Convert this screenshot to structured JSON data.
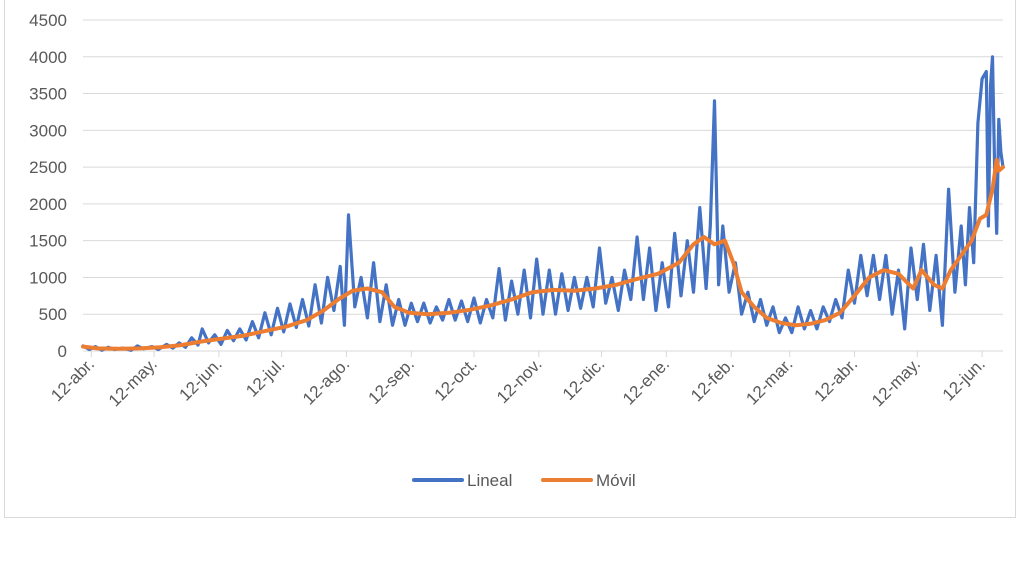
{
  "chart_data": {
    "type": "line",
    "title": "",
    "xlabel": "",
    "ylabel": "",
    "ylim": [
      0,
      4500
    ],
    "yticks": [
      0,
      500,
      1000,
      1500,
      2000,
      2500,
      3000,
      3500,
      4000,
      4500
    ],
    "xlim": [
      "2020-04-08",
      "2021-06-22"
    ],
    "xticks": [
      {
        "label": "12-abr.",
        "date": "2020-04-12"
      },
      {
        "label": "12-may.",
        "date": "2020-05-12"
      },
      {
        "label": "12-jun.",
        "date": "2020-06-12"
      },
      {
        "label": "12-jul.",
        "date": "2020-07-12"
      },
      {
        "label": "12-ago.",
        "date": "2020-08-12"
      },
      {
        "label": "12-sep.",
        "date": "2020-09-12"
      },
      {
        "label": "12-oct.",
        "date": "2020-10-12"
      },
      {
        "label": "12-nov.",
        "date": "2020-11-12"
      },
      {
        "label": "12-dic.",
        "date": "2020-12-12"
      },
      {
        "label": "12-ene.",
        "date": "2021-01-12"
      },
      {
        "label": "12-feb.",
        "date": "2021-02-12"
      },
      {
        "label": "12-mar.",
        "date": "2021-03-12"
      },
      {
        "label": "12-abr.",
        "date": "2021-04-12"
      },
      {
        "label": "12-may.",
        "date": "2021-05-12"
      },
      {
        "label": "12-jun.",
        "date": "2021-06-12"
      }
    ],
    "grid": true,
    "legend_position": "bottom",
    "series": [
      {
        "name": "Lineal",
        "color": "#4472c4",
        "points": [
          [
            "2020-04-08",
            70
          ],
          [
            "2020-04-11",
            20
          ],
          [
            "2020-04-14",
            60
          ],
          [
            "2020-04-17",
            10
          ],
          [
            "2020-04-20",
            50
          ],
          [
            "2020-04-23",
            20
          ],
          [
            "2020-04-27",
            40
          ],
          [
            "2020-05-01",
            10
          ],
          [
            "2020-05-04",
            70
          ],
          [
            "2020-05-07",
            30
          ],
          [
            "2020-05-11",
            60
          ],
          [
            "2020-05-14",
            20
          ],
          [
            "2020-05-18",
            90
          ],
          [
            "2020-05-21",
            40
          ],
          [
            "2020-05-24",
            110
          ],
          [
            "2020-05-27",
            50
          ],
          [
            "2020-05-30",
            180
          ],
          [
            "2020-06-02",
            80
          ],
          [
            "2020-06-04",
            300
          ],
          [
            "2020-06-07",
            110
          ],
          [
            "2020-06-10",
            220
          ],
          [
            "2020-06-13",
            90
          ],
          [
            "2020-06-16",
            280
          ],
          [
            "2020-06-19",
            140
          ],
          [
            "2020-06-22",
            300
          ],
          [
            "2020-06-25",
            150
          ],
          [
            "2020-06-28",
            400
          ],
          [
            "2020-07-01",
            180
          ],
          [
            "2020-07-04",
            520
          ],
          [
            "2020-07-07",
            220
          ],
          [
            "2020-07-10",
            580
          ],
          [
            "2020-07-13",
            260
          ],
          [
            "2020-07-16",
            640
          ],
          [
            "2020-07-19",
            320
          ],
          [
            "2020-07-22",
            700
          ],
          [
            "2020-07-25",
            340
          ],
          [
            "2020-07-28",
            900
          ],
          [
            "2020-07-31",
            380
          ],
          [
            "2020-08-03",
            1000
          ],
          [
            "2020-08-06",
            550
          ],
          [
            "2020-08-09",
            1150
          ],
          [
            "2020-08-11",
            350
          ],
          [
            "2020-08-13",
            1850
          ],
          [
            "2020-08-16",
            600
          ],
          [
            "2020-08-19",
            1000
          ],
          [
            "2020-08-22",
            450
          ],
          [
            "2020-08-25",
            1200
          ],
          [
            "2020-08-28",
            400
          ],
          [
            "2020-08-31",
            900
          ],
          [
            "2020-09-03",
            350
          ],
          [
            "2020-09-06",
            700
          ],
          [
            "2020-09-09",
            350
          ],
          [
            "2020-09-12",
            650
          ],
          [
            "2020-09-15",
            400
          ],
          [
            "2020-09-18",
            650
          ],
          [
            "2020-09-21",
            380
          ],
          [
            "2020-09-24",
            600
          ],
          [
            "2020-09-27",
            420
          ],
          [
            "2020-09-30",
            700
          ],
          [
            "2020-10-03",
            420
          ],
          [
            "2020-10-06",
            680
          ],
          [
            "2020-10-09",
            400
          ],
          [
            "2020-10-12",
            720
          ],
          [
            "2020-10-15",
            380
          ],
          [
            "2020-10-18",
            700
          ],
          [
            "2020-10-21",
            450
          ],
          [
            "2020-10-24",
            1120
          ],
          [
            "2020-10-27",
            420
          ],
          [
            "2020-10-30",
            950
          ],
          [
            "2020-11-02",
            500
          ],
          [
            "2020-11-05",
            1100
          ],
          [
            "2020-11-08",
            450
          ],
          [
            "2020-11-11",
            1250
          ],
          [
            "2020-11-14",
            500
          ],
          [
            "2020-11-17",
            1100
          ],
          [
            "2020-11-20",
            500
          ],
          [
            "2020-11-23",
            1050
          ],
          [
            "2020-11-26",
            550
          ],
          [
            "2020-11-29",
            1000
          ],
          [
            "2020-12-02",
            580
          ],
          [
            "2020-12-05",
            1000
          ],
          [
            "2020-12-08",
            600
          ],
          [
            "2020-12-11",
            1400
          ],
          [
            "2020-12-14",
            650
          ],
          [
            "2020-12-17",
            1000
          ],
          [
            "2020-12-20",
            550
          ],
          [
            "2020-12-23",
            1100
          ],
          [
            "2020-12-26",
            700
          ],
          [
            "2020-12-29",
            1550
          ],
          [
            "2021-01-01",
            700
          ],
          [
            "2021-01-04",
            1400
          ],
          [
            "2021-01-07",
            550
          ],
          [
            "2021-01-10",
            1200
          ],
          [
            "2021-01-13",
            600
          ],
          [
            "2021-01-16",
            1600
          ],
          [
            "2021-01-19",
            750
          ],
          [
            "2021-01-22",
            1500
          ],
          [
            "2021-01-25",
            800
          ],
          [
            "2021-01-28",
            1950
          ],
          [
            "2021-01-31",
            850
          ],
          [
            "2021-02-02",
            1700
          ],
          [
            "2021-02-04",
            3400
          ],
          [
            "2021-02-06",
            900
          ],
          [
            "2021-02-08",
            1700
          ],
          [
            "2021-02-11",
            800
          ],
          [
            "2021-02-14",
            1200
          ],
          [
            "2021-02-17",
            500
          ],
          [
            "2021-02-20",
            800
          ],
          [
            "2021-02-23",
            400
          ],
          [
            "2021-02-26",
            700
          ],
          [
            "2021-03-01",
            350
          ],
          [
            "2021-03-04",
            600
          ],
          [
            "2021-03-07",
            250
          ],
          [
            "2021-03-10",
            450
          ],
          [
            "2021-03-13",
            250
          ],
          [
            "2021-03-16",
            600
          ],
          [
            "2021-03-19",
            300
          ],
          [
            "2021-03-22",
            550
          ],
          [
            "2021-03-25",
            300
          ],
          [
            "2021-03-28",
            600
          ],
          [
            "2021-03-31",
            400
          ],
          [
            "2021-04-03",
            700
          ],
          [
            "2021-04-06",
            450
          ],
          [
            "2021-04-09",
            1100
          ],
          [
            "2021-04-12",
            650
          ],
          [
            "2021-04-15",
            1300
          ],
          [
            "2021-04-18",
            750
          ],
          [
            "2021-04-21",
            1300
          ],
          [
            "2021-04-24",
            700
          ],
          [
            "2021-04-27",
            1300
          ],
          [
            "2021-04-30",
            500
          ],
          [
            "2021-05-03",
            1100
          ],
          [
            "2021-05-06",
            300
          ],
          [
            "2021-05-09",
            1400
          ],
          [
            "2021-05-12",
            700
          ],
          [
            "2021-05-15",
            1450
          ],
          [
            "2021-05-18",
            550
          ],
          [
            "2021-05-21",
            1300
          ],
          [
            "2021-05-24",
            350
          ],
          [
            "2021-05-27",
            2200
          ],
          [
            "2021-05-30",
            800
          ],
          [
            "2021-06-02",
            1700
          ],
          [
            "2021-06-04",
            900
          ],
          [
            "2021-06-06",
            1950
          ],
          [
            "2021-06-08",
            1200
          ],
          [
            "2021-06-10",
            3100
          ],
          [
            "2021-06-12",
            3700
          ],
          [
            "2021-06-14",
            3800
          ],
          [
            "2021-06-15",
            1700
          ],
          [
            "2021-06-16",
            3600
          ],
          [
            "2021-06-17",
            4000
          ],
          [
            "2021-06-18",
            2500
          ],
          [
            "2021-06-19",
            1600
          ],
          [
            "2021-06-20",
            3150
          ],
          [
            "2021-06-21",
            2700
          ],
          [
            "2021-06-22",
            2500
          ]
        ]
      },
      {
        "name": "Móvil",
        "color": "#ed7d31",
        "points": [
          [
            "2020-04-08",
            60
          ],
          [
            "2020-04-15",
            35
          ],
          [
            "2020-04-25",
            30
          ],
          [
            "2020-05-05",
            35
          ],
          [
            "2020-05-15",
            50
          ],
          [
            "2020-05-25",
            80
          ],
          [
            "2020-06-04",
            130
          ],
          [
            "2020-06-14",
            170
          ],
          [
            "2020-06-24",
            210
          ],
          [
            "2020-07-04",
            270
          ],
          [
            "2020-07-14",
            330
          ],
          [
            "2020-07-24",
            420
          ],
          [
            "2020-08-01",
            550
          ],
          [
            "2020-08-08",
            700
          ],
          [
            "2020-08-15",
            820
          ],
          [
            "2020-08-22",
            850
          ],
          [
            "2020-08-29",
            800
          ],
          [
            "2020-09-04",
            600
          ],
          [
            "2020-09-11",
            520
          ],
          [
            "2020-09-20",
            500
          ],
          [
            "2020-09-30",
            520
          ],
          [
            "2020-10-10",
            560
          ],
          [
            "2020-10-20",
            620
          ],
          [
            "2020-10-30",
            700
          ],
          [
            "2020-11-09",
            800
          ],
          [
            "2020-11-19",
            830
          ],
          [
            "2020-11-29",
            820
          ],
          [
            "2020-12-09",
            850
          ],
          [
            "2020-12-19",
            900
          ],
          [
            "2020-12-29",
            980
          ],
          [
            "2021-01-08",
            1050
          ],
          [
            "2021-01-18",
            1200
          ],
          [
            "2021-01-25",
            1450
          ],
          [
            "2021-01-30",
            1550
          ],
          [
            "2021-02-04",
            1450
          ],
          [
            "2021-02-09",
            1500
          ],
          [
            "2021-02-13",
            1200
          ],
          [
            "2021-02-17",
            800
          ],
          [
            "2021-02-23",
            600
          ],
          [
            "2021-03-01",
            450
          ],
          [
            "2021-03-08",
            380
          ],
          [
            "2021-03-15",
            350
          ],
          [
            "2021-03-22",
            370
          ],
          [
            "2021-03-29",
            420
          ],
          [
            "2021-04-05",
            520
          ],
          [
            "2021-04-12",
            750
          ],
          [
            "2021-04-19",
            1000
          ],
          [
            "2021-04-26",
            1100
          ],
          [
            "2021-05-03",
            1050
          ],
          [
            "2021-05-10",
            850
          ],
          [
            "2021-05-14",
            1100
          ],
          [
            "2021-05-20",
            900
          ],
          [
            "2021-05-24",
            850
          ],
          [
            "2021-05-28",
            1100
          ],
          [
            "2021-06-02",
            1300
          ],
          [
            "2021-06-07",
            1500
          ],
          [
            "2021-06-11",
            1800
          ],
          [
            "2021-06-14",
            1850
          ],
          [
            "2021-06-17",
            2200
          ],
          [
            "2021-06-19",
            2600
          ],
          [
            "2021-06-20",
            2450
          ],
          [
            "2021-06-22",
            2500
          ]
        ]
      }
    ]
  }
}
